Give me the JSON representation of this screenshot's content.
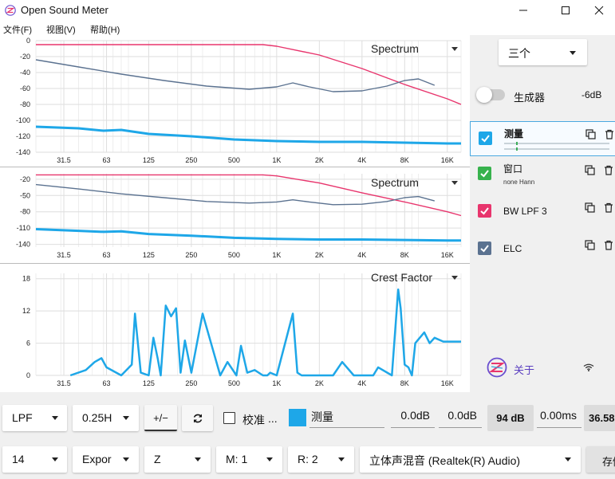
{
  "window": {
    "title": "Open Sound Meter",
    "menu": [
      "文件(F)",
      "视图(V)",
      "帮助(H)"
    ]
  },
  "plots": [
    {
      "title": "Spectrum",
      "y_ticks": [
        "0",
        "-20",
        "-40",
        "-60",
        "-80",
        "-100",
        "-120",
        "-140"
      ],
      "x_ticks": [
        "31.5",
        "63",
        "125",
        "250",
        "500",
        "1K",
        "2K",
        "4K",
        "8K",
        "16K"
      ]
    },
    {
      "title": "Spectrum",
      "y_ticks": [
        "-20",
        "-50",
        "-80",
        "-110",
        "-140"
      ],
      "x_ticks": [
        "31.5",
        "63",
        "125",
        "250",
        "500",
        "1K",
        "2K",
        "4K",
        "8K",
        "16K"
      ]
    },
    {
      "title": "Crest Factor",
      "y_ticks": [
        "18",
        "12",
        "6",
        "0"
      ],
      "x_ticks": [
        "31.5",
        "63",
        "125",
        "250",
        "500",
        "1K",
        "2K",
        "4K",
        "8K",
        "16K"
      ]
    }
  ],
  "chart_data": [
    {
      "type": "line",
      "title": "Spectrum",
      "xscale": "log",
      "xlim": [
        20,
        20000
      ],
      "ylim": [
        -140,
        0
      ],
      "series": [
        {
          "color": "#e8356d",
          "x": [
            20,
            500,
            800,
            1000,
            2000,
            4000,
            8000,
            16000,
            20000
          ],
          "y": [
            -5,
            -5,
            -5,
            -7,
            -18,
            -35,
            -55,
            -73,
            -80
          ]
        },
        {
          "color": "#5b7290",
          "x": [
            20,
            40,
            80,
            160,
            320,
            640,
            1000,
            1300,
            1700,
            2500,
            4000,
            6000,
            8000,
            10000,
            13000
          ],
          "y": [
            -24,
            -33,
            -42,
            -50,
            -57,
            -61,
            -58,
            -53,
            -58,
            -64,
            -63,
            -57,
            -50,
            -48,
            -56
          ]
        },
        {
          "color": "#1ea7e8",
          "x": [
            20,
            40,
            60,
            80,
            125,
            250,
            500,
            1000,
            2000,
            4000,
            8000,
            16000,
            20000
          ],
          "y": [
            -108,
            -110,
            -113,
            -112,
            -117,
            -120,
            -124,
            -126,
            -127,
            -127,
            -128,
            -129,
            -129
          ]
        }
      ]
    },
    {
      "type": "line",
      "title": "Spectrum",
      "xscale": "log",
      "xlim": [
        20,
        20000
      ],
      "ylim": [
        -145,
        -10
      ],
      "series": [
        {
          "color": "#e8356d",
          "x": [
            20,
            500,
            800,
            1000,
            2000,
            4000,
            8000,
            16000,
            20000
          ],
          "y": [
            -12,
            -12,
            -12,
            -14,
            -27,
            -45,
            -62,
            -80,
            -87
          ]
        },
        {
          "color": "#5b7290",
          "x": [
            20,
            40,
            80,
            160,
            320,
            640,
            1000,
            1300,
            1700,
            2500,
            4000,
            6000,
            8000,
            10000,
            13000
          ],
          "y": [
            -30,
            -38,
            -47,
            -54,
            -61,
            -64,
            -62,
            -58,
            -62,
            -67,
            -66,
            -61,
            -54,
            -52,
            -60
          ]
        },
        {
          "color": "#1ea7e8",
          "x": [
            20,
            40,
            60,
            80,
            125,
            250,
            500,
            1000,
            2000,
            4000,
            8000,
            16000,
            20000
          ],
          "y": [
            -112,
            -115,
            -117,
            -116,
            -121,
            -124,
            -128,
            -130,
            -131,
            -131,
            -132,
            -133,
            -133
          ]
        }
      ]
    },
    {
      "type": "line",
      "title": "Crest Factor",
      "xscale": "log",
      "xlim": [
        20,
        20000
      ],
      "ylim": [
        0,
        19
      ],
      "series": [
        {
          "color": "#1ea7e8",
          "x": [
            35,
            45,
            52,
            58,
            63,
            80,
            95,
            100,
            110,
            125,
            135,
            145,
            152,
            165,
            180,
            195,
            210,
            225,
            250,
            300,
            400,
            450,
            520,
            560,
            620,
            700,
            800,
            860,
            900,
            1000,
            1300,
            1400,
            1500,
            1800,
            2100,
            2500,
            2900,
            3500,
            4300,
            4800,
            5200,
            6500,
            7200,
            7500,
            8000,
            8500,
            9000,
            9500,
            11000,
            12000,
            13000,
            15000,
            20000
          ],
          "y": [
            0,
            1,
            2.5,
            3.2,
            1.5,
            0,
            2,
            11.5,
            0.5,
            0,
            7,
            3,
            0,
            13,
            11,
            12.5,
            0.5,
            6.5,
            0.5,
            11.5,
            0,
            2.5,
            0,
            5.5,
            0.5,
            1,
            0,
            0,
            0.5,
            0,
            11.5,
            0.5,
            0,
            0,
            0,
            0,
            2.5,
            0,
            0,
            0,
            1.5,
            0,
            16,
            12.5,
            2,
            1.5,
            0,
            6,
            8,
            6,
            7,
            6.3,
            6.3
          ]
        }
      ]
    }
  ],
  "right_panel": {
    "mode_select": "三个",
    "generator": {
      "label": "生成器",
      "level": "-6dB"
    },
    "sources": [
      {
        "name": "测量",
        "sub": "",
        "color": "#1ea7e8",
        "checked": true,
        "selected": true
      },
      {
        "name": "窗口",
        "sub": "none Hann",
        "color": "#37b24d",
        "checked": true,
        "selected": false
      },
      {
        "name": "BW LPF 3",
        "sub": "",
        "color": "#e8356d",
        "checked": true,
        "selected": false
      },
      {
        "name": "ELC",
        "sub": "",
        "color": "#5b7290",
        "checked": true,
        "selected": false
      }
    ],
    "about": "关于"
  },
  "toolbar1": {
    "filter": "LPF",
    "freq": "0.25H",
    "polarity": "+/−",
    "calibrate_label": "校准",
    "calibrate_more": "...",
    "measure_color": "#1ea7e8",
    "measure_name": "测量",
    "gain": "0.0dB",
    "offset": "0.0dB",
    "level": "94 dB",
    "delay": "0.00ms",
    "extra": "36.58"
  },
  "toolbar2": {
    "order": "14",
    "export": "Expor",
    "mode": "Z",
    "measurement": "M: 1",
    "reference": "R: 2",
    "device": "立体声混音 (Realtek(R) Audio)",
    "save": "存储"
  }
}
